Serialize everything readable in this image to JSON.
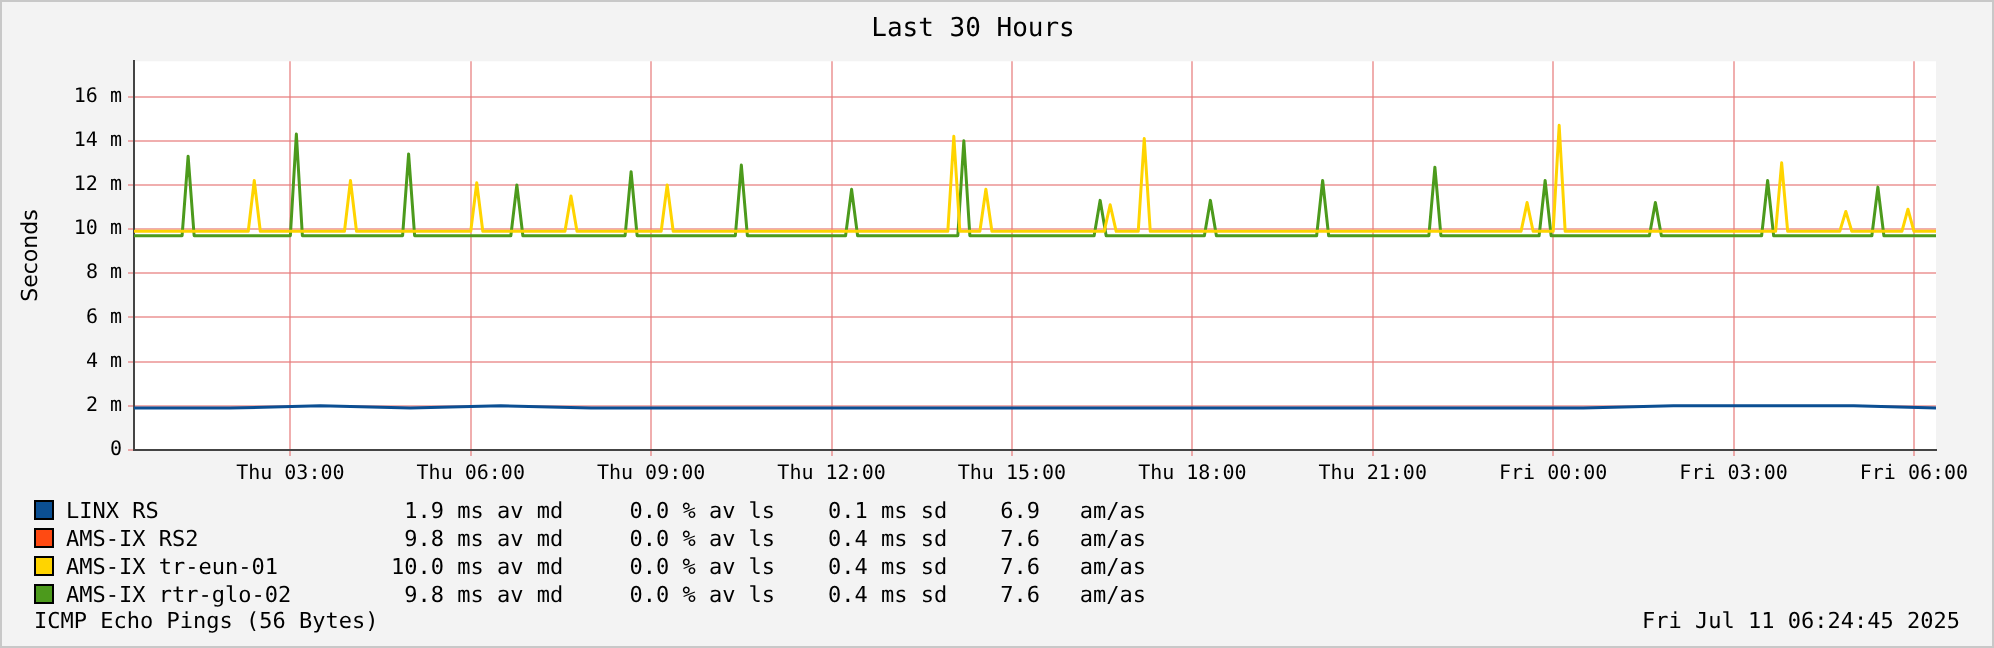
{
  "chart_data": {
    "type": "line",
    "title": "Last 30 Hours",
    "ylabel": "Seconds",
    "xlim": [
      "2025-07-10T00:24",
      "2025-07-11T06:22"
    ],
    "xticks": [
      {
        "value": "2025-07-10T03:00",
        "label": "Thu 03:00"
      },
      {
        "value": "2025-07-10T06:00",
        "label": "Thu 06:00"
      },
      {
        "value": "2025-07-10T09:00",
        "label": "Thu 09:00"
      },
      {
        "value": "2025-07-10T12:00",
        "label": "Thu 12:00"
      },
      {
        "value": "2025-07-10T15:00",
        "label": "Thu 15:00"
      },
      {
        "value": "2025-07-10T18:00",
        "label": "Thu 18:00"
      },
      {
        "value": "2025-07-10T21:00",
        "label": "Thu 21:00"
      },
      {
        "value": "2025-07-11T00:00",
        "label": "Fri 00:00"
      },
      {
        "value": "2025-07-11T03:00",
        "label": "Fri 03:00"
      },
      {
        "value": "2025-07-11T06:00",
        "label": "Fri 06:00"
      }
    ],
    "ylim": [
      0,
      17.6
    ],
    "yticks": [
      0,
      {
        "value": 2,
        "label": "2 m"
      },
      {
        "value": 4,
        "label": "4 m"
      },
      {
        "value": 6,
        "label": "6 m"
      },
      {
        "value": 8,
        "label": "8 m"
      },
      {
        "value": 10,
        "label": "10 m"
      },
      {
        "value": 12,
        "label": "12 m"
      },
      {
        "value": 14,
        "label": "14 m"
      },
      {
        "value": 16,
        "label": "16 m"
      }
    ],
    "grid": true,
    "legend": "bottom",
    "marker": "none",
    "line_style": "solid",
    "series": [
      {
        "name": "LINX RS",
        "color": "#0b4f93",
        "x": [
          "2025-07-10T00:24",
          "2025-07-10T02:00",
          "2025-07-10T03:30",
          "2025-07-10T05:00",
          "2025-07-10T06:30",
          "2025-07-10T08:00",
          "2025-07-10T09:30",
          "2025-07-10T11:00",
          "2025-07-10T12:30",
          "2025-07-10T14:00",
          "2025-07-10T15:30",
          "2025-07-10T17:00",
          "2025-07-10T18:30",
          "2025-07-10T20:00",
          "2025-07-10T21:30",
          "2025-07-10T23:00",
          "2025-07-11T00:30",
          "2025-07-11T02:00",
          "2025-07-11T03:30",
          "2025-07-11T05:00",
          "2025-07-11T06:22"
        ],
        "values": [
          1.9,
          1.9,
          2.0,
          1.9,
          2.0,
          1.9,
          1.9,
          1.9,
          1.9,
          1.9,
          1.9,
          1.9,
          1.9,
          1.9,
          1.9,
          1.9,
          1.9,
          2.0,
          2.0,
          2.0,
          1.9
        ]
      },
      {
        "name": "AMS-IX RS2",
        "color": "#ff4a12"
      },
      {
        "name": "AMS-IX tr-eun-01",
        "color": "#ffd400",
        "x": [
          "2025-07-10T00:24",
          "2025-07-10T02:18",
          "2025-07-10T02:24",
          "2025-07-10T02:30",
          "2025-07-10T03:54",
          "2025-07-10T04:00",
          "2025-07-10T04:06",
          "2025-07-10T06:00",
          "2025-07-10T06:06",
          "2025-07-10T06:12",
          "2025-07-10T07:34",
          "2025-07-10T07:40",
          "2025-07-10T07:46",
          "2025-07-10T09:10",
          "2025-07-10T09:16",
          "2025-07-10T09:22",
          "2025-07-10T13:56",
          "2025-07-10T14:02",
          "2025-07-10T14:08",
          "2025-07-10T14:28",
          "2025-07-10T14:34",
          "2025-07-10T14:40",
          "2025-07-10T16:32",
          "2025-07-10T16:38",
          "2025-07-10T16:44",
          "2025-07-10T17:06",
          "2025-07-10T17:12",
          "2025-07-10T17:18",
          "2025-07-10T23:28",
          "2025-07-10T23:34",
          "2025-07-10T23:40",
          "2025-07-11T00:00",
          "2025-07-11T00:06",
          "2025-07-11T00:12",
          "2025-07-11T03:42",
          "2025-07-11T03:48",
          "2025-07-11T03:54",
          "2025-07-11T04:46",
          "2025-07-11T04:52",
          "2025-07-11T04:58",
          "2025-07-11T05:48",
          "2025-07-11T05:54",
          "2025-07-11T06:00",
          "2025-07-11T06:22"
        ],
        "values": [
          9.9,
          9.9,
          12.2,
          9.9,
          9.9,
          12.2,
          9.9,
          9.9,
          12.1,
          9.9,
          9.9,
          11.5,
          9.9,
          9.9,
          12.0,
          9.9,
          9.9,
          14.2,
          9.9,
          9.9,
          11.8,
          9.9,
          9.9,
          11.1,
          9.9,
          9.9,
          14.1,
          9.9,
          9.9,
          11.2,
          9.9,
          9.9,
          14.7,
          9.9,
          9.9,
          13.0,
          9.9,
          9.9,
          10.8,
          9.9,
          9.9,
          10.9,
          9.9,
          9.9
        ]
      },
      {
        "name": "AMS-IX rtr-glo-02",
        "color": "#4c9a1c",
        "x": [
          "2025-07-10T00:24",
          "2025-07-10T01:12",
          "2025-07-10T01:18",
          "2025-07-10T01:24",
          "2025-07-10T03:00",
          "2025-07-10T03:06",
          "2025-07-10T03:12",
          "2025-07-10T04:52",
          "2025-07-10T04:58",
          "2025-07-10T05:04",
          "2025-07-10T06:40",
          "2025-07-10T06:46",
          "2025-07-10T06:52",
          "2025-07-10T08:34",
          "2025-07-10T08:40",
          "2025-07-10T08:46",
          "2025-07-10T10:24",
          "2025-07-10T10:30",
          "2025-07-10T10:36",
          "2025-07-10T12:14",
          "2025-07-10T12:20",
          "2025-07-10T12:26",
          "2025-07-10T14:06",
          "2025-07-10T14:12",
          "2025-07-10T14:18",
          "2025-07-10T16:22",
          "2025-07-10T16:28",
          "2025-07-10T16:34",
          "2025-07-10T18:12",
          "2025-07-10T18:18",
          "2025-07-10T18:24",
          "2025-07-10T20:04",
          "2025-07-10T20:10",
          "2025-07-10T20:16",
          "2025-07-10T21:56",
          "2025-07-10T22:02",
          "2025-07-10T22:08",
          "2025-07-10T23:46",
          "2025-07-10T23:52",
          "2025-07-10T23:58",
          "2025-07-11T01:36",
          "2025-07-11T01:42",
          "2025-07-11T01:48",
          "2025-07-11T03:28",
          "2025-07-11T03:34",
          "2025-07-11T03:40",
          "2025-07-11T05:18",
          "2025-07-11T05:24",
          "2025-07-11T05:30",
          "2025-07-11T06:22"
        ],
        "values": [
          9.7,
          9.7,
          13.3,
          9.7,
          9.7,
          14.3,
          9.7,
          9.7,
          13.4,
          9.7,
          9.7,
          12.0,
          9.7,
          9.7,
          12.6,
          9.7,
          9.7,
          12.9,
          9.7,
          9.7,
          11.8,
          9.7,
          9.7,
          14.0,
          9.7,
          9.7,
          11.3,
          9.7,
          9.7,
          11.3,
          9.7,
          9.7,
          12.2,
          9.7,
          9.7,
          12.8,
          9.7,
          9.7,
          12.2,
          9.7,
          9.7,
          11.2,
          9.7,
          9.7,
          12.2,
          9.7,
          9.7,
          11.9,
          9.7,
          9.7
        ]
      }
    ],
    "annotations": [
      "1.9 ms av md     0.0 % av ls    0.1 ms sd    6.9   am/as",
      "9.8 ms av md     0.0 % av ls    0.4 ms sd    7.6   am/as",
      "10.0 ms av md     0.0 % av ls    0.4 ms sd    7.6   am/as",
      "9.8 ms av md     0.0 % av ls    0.4 ms sd    7.6   am/as",
      "ICMP Echo Pings (56 Bytes)",
      "Fri Jul 11 06:24:45 2025"
    ]
  }
}
